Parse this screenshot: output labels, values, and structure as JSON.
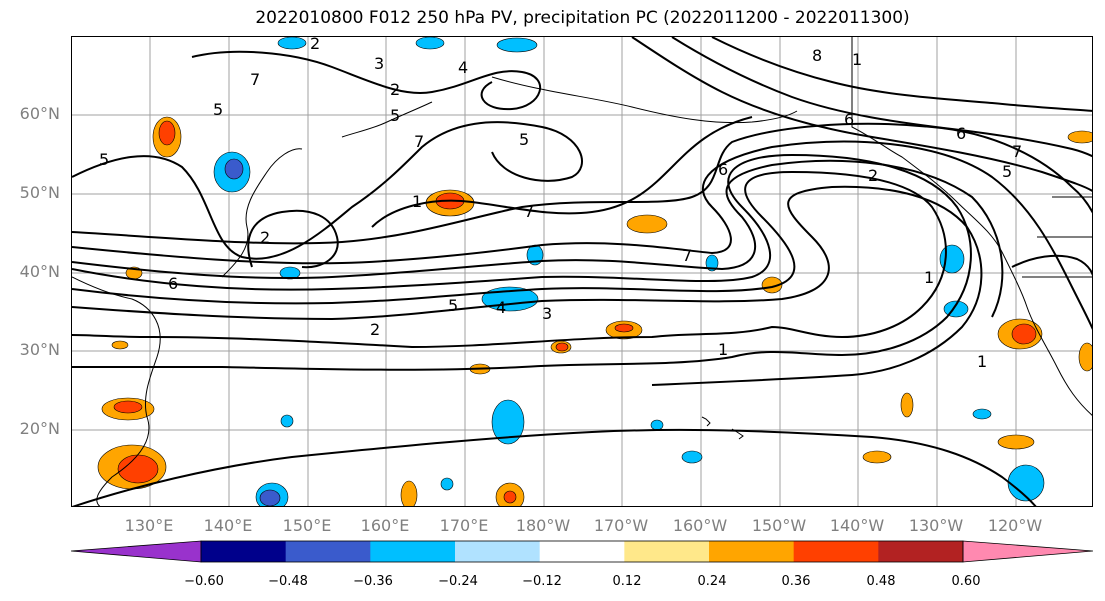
{
  "title": "2022010800 F012 250 hPa PV, precipitation PC (2022011200 - 2022011300)",
  "map": {
    "lat_labels": [
      "60°N",
      "50°N",
      "40°N",
      "30°N",
      "20°N"
    ],
    "lon_labels": [
      "130°E",
      "140°E",
      "150°E",
      "160°E",
      "170°E",
      "180°W",
      "170°W",
      "160°W",
      "150°W",
      "140°W",
      "130°W",
      "120°W"
    ],
    "contour_labels": [
      "2",
      "3",
      "4",
      "5",
      "7",
      "8",
      "1",
      "5",
      "5",
      "2",
      "5",
      "7",
      "1",
      "6",
      "2",
      "6",
      "5",
      "6",
      "7",
      "2",
      "5",
      "4",
      "3",
      "2",
      "1",
      "1",
      "1",
      "7",
      "6",
      "7"
    ]
  },
  "colorbar": {
    "colors": [
      "#9932CC",
      "#00008B",
      "#3A5BCC",
      "#00BFFF",
      "#B0E2FF",
      "#FFFFFF",
      "#FFE88A",
      "#FFA500",
      "#FF4000",
      "#B22222",
      "#FF89B0"
    ],
    "ticks": [
      "−0.60",
      "−0.48",
      "−0.36",
      "−0.24",
      "−0.12",
      "0.12",
      "0.24",
      "0.36",
      "0.48",
      "0.60"
    ]
  }
}
